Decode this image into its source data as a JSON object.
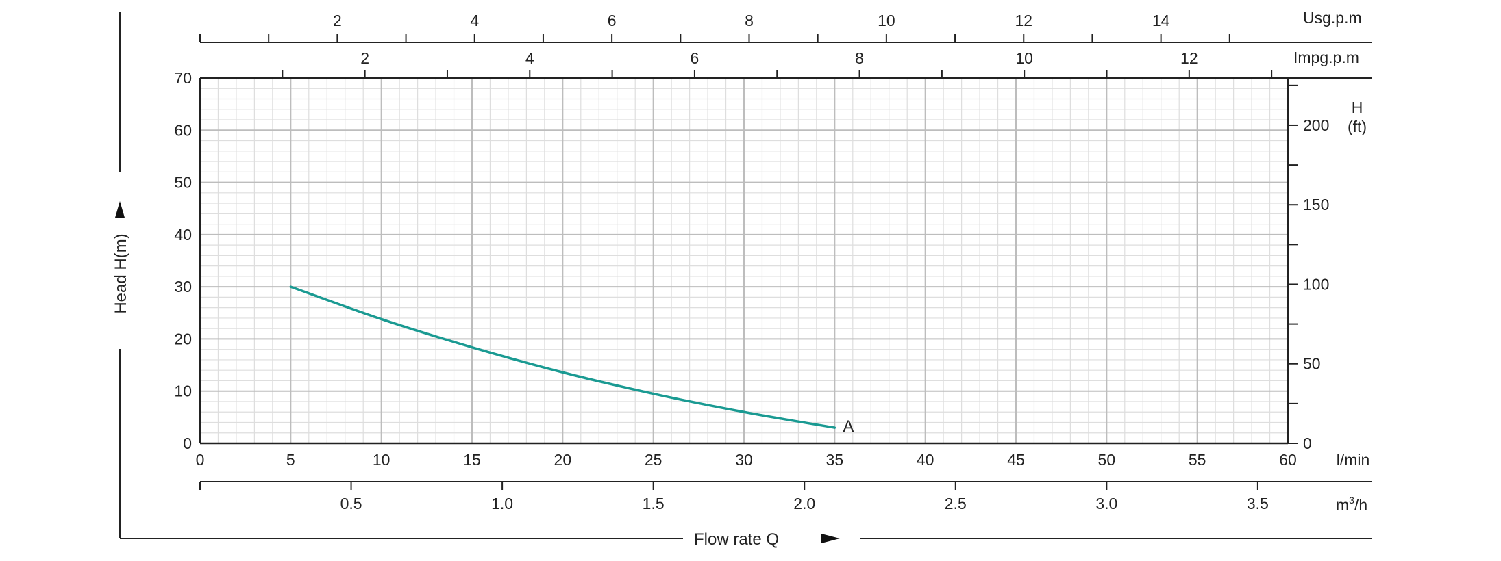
{
  "chart_data": {
    "type": "line",
    "x_label": "Flow rate Q",
    "y_label": "Head H(m)",
    "x_unit": "l/min",
    "x_ticks": [
      0,
      5,
      10,
      15,
      20,
      25,
      30,
      35,
      40,
      45,
      50,
      55,
      60
    ],
    "xlim": [
      0,
      60
    ],
    "y_ticks": [
      0,
      10,
      20,
      30,
      40,
      50,
      60,
      70
    ],
    "ylim": [
      0,
      70
    ],
    "series": [
      {
        "name": "A",
        "color": "#1a9a92",
        "x": [
          5,
          10,
          15,
          20,
          25,
          30,
          35
        ],
        "y": [
          30,
          23.8,
          18.4,
          13.6,
          9.5,
          6.0,
          3.0
        ]
      }
    ],
    "secondary_axes": {
      "usgpm": {
        "label": "Usg.p.m",
        "ticks": [
          "2",
          "4",
          "6",
          "8",
          "10",
          "12",
          "14"
        ]
      },
      "impgpm": {
        "label": "Impg.p.m",
        "ticks": [
          "2",
          "4",
          "6",
          "8",
          "10",
          "12"
        ]
      },
      "m3h": {
        "label": "m",
        "label_sup": "3",
        "label_suffix": "/h",
        "ticks": [
          "0.5",
          "1.0",
          "1.5",
          "2.0",
          "2.5",
          "3.0",
          "3.5"
        ]
      },
      "head_ft": {
        "label_line1": "H",
        "label_line2": "(ft)",
        "ticks": [
          "0",
          "50",
          "100",
          "150",
          "200"
        ]
      }
    },
    "grid": true
  }
}
